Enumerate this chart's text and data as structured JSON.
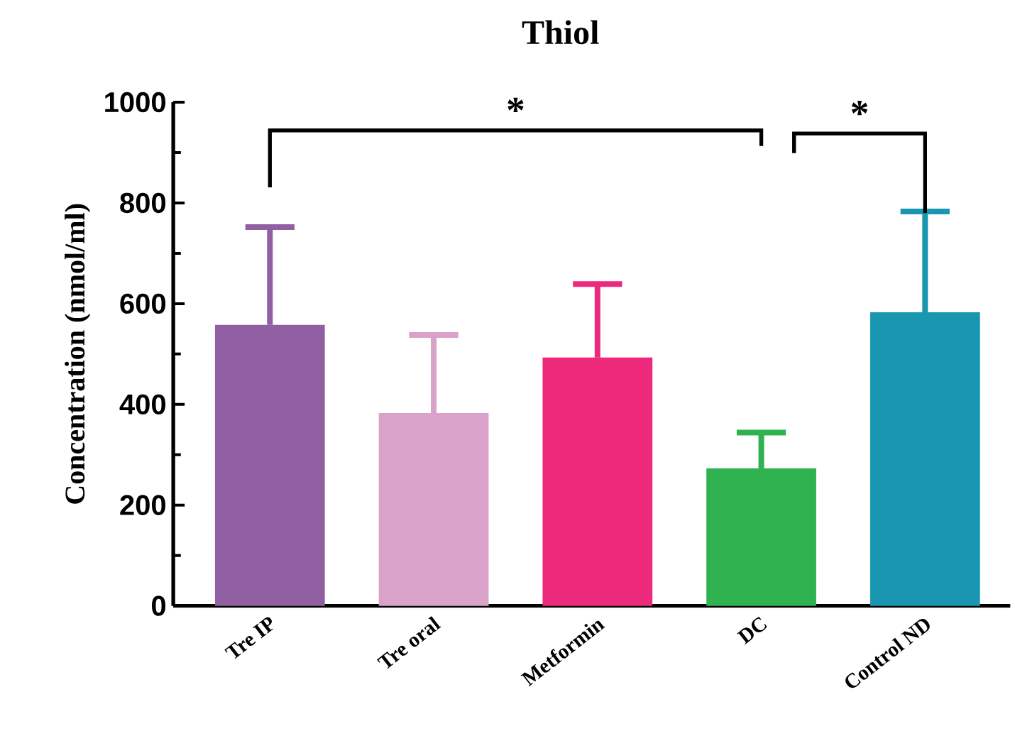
{
  "chart_data": {
    "type": "bar",
    "title": "Thiol",
    "ylabel": "Concentration (nmol/ml)",
    "categories": [
      "Tre IP",
      "Tre oral",
      "Metformin",
      "DC",
      "Control ND"
    ],
    "values": [
      558,
      383,
      493,
      273,
      583
    ],
    "errors": [
      [
        558,
        752
      ],
      [
        383,
        538
      ],
      [
        493,
        639
      ],
      [
        273,
        344
      ],
      [
        583,
        783
      ]
    ],
    "colors": [
      "#9160a2",
      "#d9a2c9",
      "#ec297b",
      "#2fb24f",
      "#1a97b0"
    ],
    "ylim": [
      0,
      1000
    ],
    "yticks": [
      0,
      200,
      400,
      600,
      800,
      1000
    ],
    "grid": false,
    "annotations": [
      "*",
      "*"
    ]
  }
}
